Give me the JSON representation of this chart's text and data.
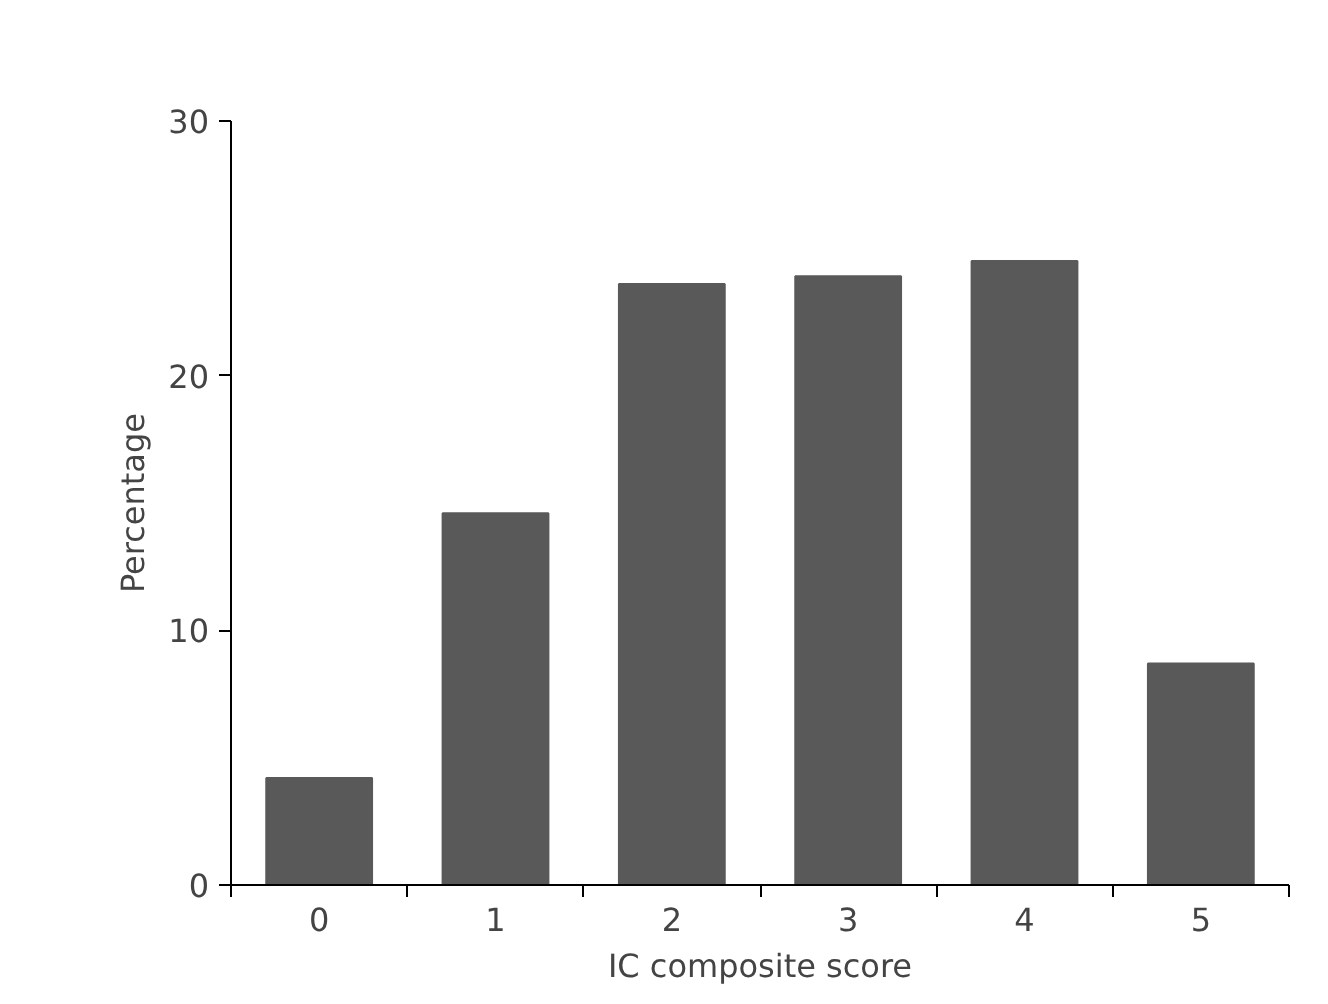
{
  "chart_data": {
    "type": "bar",
    "xlabel": "IC composite score",
    "ylabel": "Percentage",
    "categories": [
      "0",
      "1",
      "2",
      "3",
      "4",
      "5"
    ],
    "values": [
      4.2,
      14.6,
      23.6,
      23.9,
      24.5,
      8.7
    ],
    "color": "#595959",
    "ylim": [
      0,
      30
    ],
    "yticks": [
      0,
      10,
      20,
      30
    ],
    "grid": false
  }
}
